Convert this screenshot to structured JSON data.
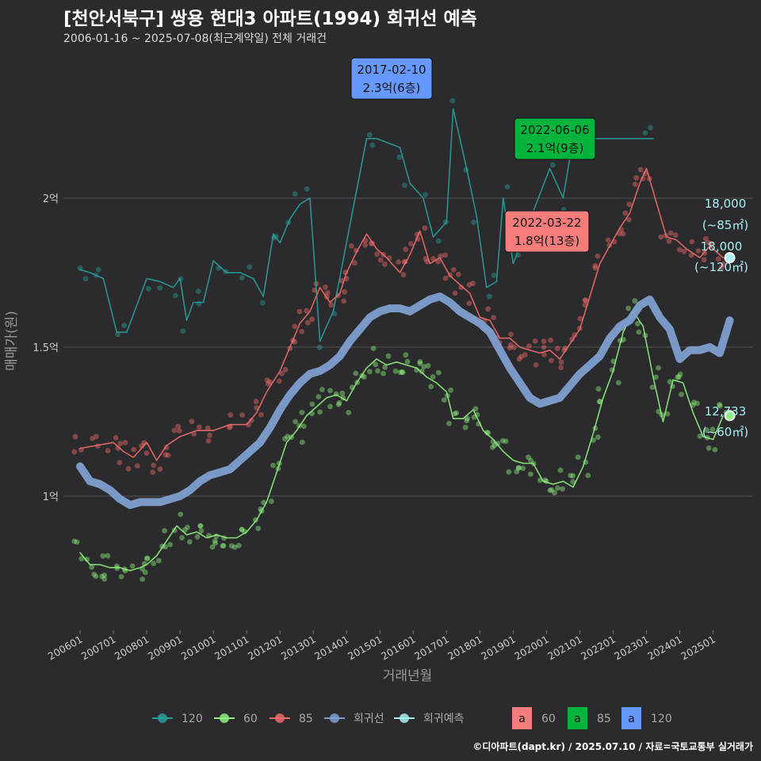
{
  "header": {
    "title": "[천안서북구] 쌍용 현대3 아파트(1994) 회귀선 예측",
    "subtitle": "2006-01-16 ~ 2025-07-08(최근계약일) 전체 거래건"
  },
  "credit": "©디아파트(dapt.kr) / 2025.07.10 / 자료=국토교통부 실거래가",
  "colors": {
    "bg": "#2b2b2d",
    "s120": "#2a9d9a",
    "s60": "#8ef07e",
    "s85": "#f06b6b",
    "reg": "#7f9fcf",
    "pred": "#a8f0f0",
    "box60": "#f47c7c",
    "box85": "#00b43c",
    "box120": "#6699ff"
  },
  "chart_data": {
    "type": "line",
    "title": "[천안서북구] 쌍용 현대3 아파트(1994) 회귀선 예측",
    "xlabel": "거래년월",
    "ylabel": "매매가(원)",
    "xlim": [
      2005.5,
      2026.2
    ],
    "ylim": [
      0.55,
      2.5
    ],
    "y_ticks": [
      {
        "v": 1.0,
        "label": "1억"
      },
      {
        "v": 1.5,
        "label": "1.5억"
      },
      {
        "v": 2.0,
        "label": "2억"
      }
    ],
    "x_ticks": [
      "200601",
      "200701",
      "200801",
      "200901",
      "201001",
      "201101",
      "201201",
      "201301",
      "201401",
      "201501",
      "201601",
      "201701",
      "201801",
      "201901",
      "202001",
      "202101",
      "202201",
      "202301",
      "202401",
      "202501"
    ],
    "series": [
      {
        "name": "120",
        "key": "s120",
        "values": [
          [
            2006.0,
            1.76
          ],
          [
            2006.3,
            1.75
          ],
          [
            2006.5,
            1.74
          ],
          [
            2006.7,
            1.73
          ],
          [
            2007.1,
            1.55
          ],
          [
            2007.4,
            1.55
          ],
          [
            2008.0,
            1.73
          ],
          [
            2008.4,
            1.72
          ],
          [
            2008.8,
            1.7
          ],
          [
            2009.0,
            1.73
          ],
          [
            2009.2,
            1.59
          ],
          [
            2009.4,
            1.65
          ],
          [
            2009.7,
            1.65
          ],
          [
            2010.0,
            1.79
          ],
          [
            2010.4,
            1.75
          ],
          [
            2010.8,
            1.75
          ],
          [
            2011.2,
            1.73
          ],
          [
            2011.5,
            1.67
          ],
          [
            2011.8,
            1.88
          ],
          [
            2012.0,
            1.85
          ],
          [
            2012.3,
            1.93
          ],
          [
            2012.6,
            1.98
          ],
          [
            2012.9,
            2.0
          ],
          [
            2013.2,
            1.52
          ],
          [
            2013.6,
            1.62
          ],
          [
            2014.6,
            2.2
          ],
          [
            2014.9,
            2.2
          ],
          [
            2015.6,
            2.17
          ],
          [
            2015.9,
            2.05
          ],
          [
            2016.3,
            2.0
          ],
          [
            2016.6,
            1.87
          ],
          [
            2017.0,
            1.92
          ],
          [
            2017.2,
            2.3
          ],
          [
            2017.6,
            2.1
          ],
          [
            2017.9,
            1.94
          ],
          [
            2018.2,
            1.7
          ],
          [
            2018.5,
            1.72
          ],
          [
            2018.7,
            2.0
          ],
          [
            2019.0,
            1.78
          ],
          [
            2020.1,
            2.1
          ],
          [
            2020.5,
            2.0
          ],
          [
            2020.8,
            2.2
          ],
          [
            2021.3,
            2.2
          ],
          [
            2022.9,
            2.2
          ],
          [
            2023.2,
            2.2
          ]
        ]
      },
      {
        "name": "85",
        "key": "s85",
        "values": [
          [
            2006.0,
            1.16
          ],
          [
            2006.5,
            1.17
          ],
          [
            2007.0,
            1.18
          ],
          [
            2007.3,
            1.15
          ],
          [
            2007.6,
            1.13
          ],
          [
            2008.0,
            1.18
          ],
          [
            2008.3,
            1.12
          ],
          [
            2008.6,
            1.17
          ],
          [
            2009.0,
            1.2
          ],
          [
            2009.5,
            1.22
          ],
          [
            2010.0,
            1.22
          ],
          [
            2010.5,
            1.24
          ],
          [
            2011.0,
            1.24
          ],
          [
            2011.3,
            1.28
          ],
          [
            2011.6,
            1.35
          ],
          [
            2012.0,
            1.42
          ],
          [
            2012.3,
            1.5
          ],
          [
            2012.6,
            1.58
          ],
          [
            2012.9,
            1.62
          ],
          [
            2013.2,
            1.7
          ],
          [
            2013.5,
            1.65
          ],
          [
            2013.8,
            1.68
          ],
          [
            2014.0,
            1.75
          ],
          [
            2014.3,
            1.82
          ],
          [
            2014.6,
            1.88
          ],
          [
            2014.9,
            1.83
          ],
          [
            2015.2,
            1.8
          ],
          [
            2015.6,
            1.75
          ],
          [
            2015.9,
            1.81
          ],
          [
            2016.2,
            1.89
          ],
          [
            2016.5,
            1.78
          ],
          [
            2016.8,
            1.8
          ],
          [
            2017.1,
            1.74
          ],
          [
            2017.4,
            1.71
          ],
          [
            2017.7,
            1.68
          ],
          [
            2018.0,
            1.6
          ],
          [
            2018.3,
            1.59
          ],
          [
            2018.6,
            1.53
          ],
          [
            2018.9,
            1.53
          ],
          [
            2019.2,
            1.5
          ],
          [
            2019.5,
            1.49
          ],
          [
            2019.8,
            1.48
          ],
          [
            2020.1,
            1.49
          ],
          [
            2020.4,
            1.46
          ],
          [
            2020.7,
            1.51
          ],
          [
            2021.0,
            1.56
          ],
          [
            2021.3,
            1.67
          ],
          [
            2021.6,
            1.78
          ],
          [
            2021.9,
            1.84
          ],
          [
            2022.2,
            1.9
          ],
          [
            2022.5,
            1.95
          ],
          [
            2022.8,
            2.05
          ],
          [
            2023.0,
            2.1
          ],
          [
            2023.6,
            1.87
          ],
          [
            2023.9,
            1.86
          ],
          [
            2024.2,
            1.83
          ],
          [
            2024.6,
            1.8
          ],
          [
            2024.9,
            1.84
          ],
          [
            2025.3,
            1.8
          ]
        ]
      },
      {
        "name": "60",
        "key": "s60",
        "values": [
          [
            2006.0,
            0.81
          ],
          [
            2006.3,
            0.77
          ],
          [
            2006.6,
            0.77
          ],
          [
            2006.9,
            0.76
          ],
          [
            2007.2,
            0.76
          ],
          [
            2007.5,
            0.75
          ],
          [
            2007.8,
            0.76
          ],
          [
            2008.0,
            0.77
          ],
          [
            2008.3,
            0.8
          ],
          [
            2008.6,
            0.85
          ],
          [
            2008.9,
            0.9
          ],
          [
            2009.2,
            0.87
          ],
          [
            2009.5,
            0.88
          ],
          [
            2009.8,
            0.86
          ],
          [
            2010.1,
            0.87
          ],
          [
            2010.4,
            0.86
          ],
          [
            2010.7,
            0.86
          ],
          [
            2011.0,
            0.88
          ],
          [
            2011.3,
            0.92
          ],
          [
            2011.6,
            0.98
          ],
          [
            2011.9,
            1.08
          ],
          [
            2012.2,
            1.18
          ],
          [
            2012.5,
            1.22
          ],
          [
            2012.8,
            1.27
          ],
          [
            2013.1,
            1.3
          ],
          [
            2013.4,
            1.33
          ],
          [
            2013.7,
            1.34
          ],
          [
            2014.0,
            1.32
          ],
          [
            2014.3,
            1.38
          ],
          [
            2014.6,
            1.43
          ],
          [
            2014.9,
            1.46
          ],
          [
            2015.2,
            1.44
          ],
          [
            2015.5,
            1.45
          ],
          [
            2015.8,
            1.44
          ],
          [
            2016.1,
            1.43
          ],
          [
            2016.4,
            1.4
          ],
          [
            2016.7,
            1.38
          ],
          [
            2017.0,
            1.35
          ],
          [
            2017.2,
            1.26
          ],
          [
            2017.5,
            1.26
          ],
          [
            2017.8,
            1.29
          ],
          [
            2018.1,
            1.22
          ],
          [
            2018.4,
            1.19
          ],
          [
            2018.7,
            1.15
          ],
          [
            2019.0,
            1.12
          ],
          [
            2019.3,
            1.11
          ],
          [
            2019.6,
            1.11
          ],
          [
            2019.9,
            1.05
          ],
          [
            2020.2,
            1.04
          ],
          [
            2020.5,
            1.05
          ],
          [
            2020.8,
            1.03
          ],
          [
            2021.1,
            1.1
          ],
          [
            2021.4,
            1.21
          ],
          [
            2021.7,
            1.33
          ],
          [
            2022.0,
            1.42
          ],
          [
            2022.3,
            1.55
          ],
          [
            2022.6,
            1.62
          ],
          [
            2022.9,
            1.57
          ],
          [
            2023.2,
            1.4
          ],
          [
            2023.5,
            1.25
          ],
          [
            2023.8,
            1.39
          ],
          [
            2024.1,
            1.38
          ],
          [
            2024.4,
            1.28
          ],
          [
            2024.7,
            1.2
          ],
          [
            2025.0,
            1.19
          ],
          [
            2025.3,
            1.27
          ]
        ]
      },
      {
        "name": "회귀선",
        "key": "reg",
        "values": [
          [
            2006.0,
            1.1
          ],
          [
            2006.3,
            1.05
          ],
          [
            2006.6,
            1.04
          ],
          [
            2006.9,
            1.02
          ],
          [
            2007.2,
            0.99
          ],
          [
            2007.5,
            0.97
          ],
          [
            2007.8,
            0.98
          ],
          [
            2008.1,
            0.98
          ],
          [
            2008.4,
            0.98
          ],
          [
            2008.7,
            0.99
          ],
          [
            2009.0,
            1.0
          ],
          [
            2009.3,
            1.02
          ],
          [
            2009.6,
            1.05
          ],
          [
            2009.9,
            1.07
          ],
          [
            2010.2,
            1.08
          ],
          [
            2010.5,
            1.09
          ],
          [
            2010.8,
            1.12
          ],
          [
            2011.1,
            1.15
          ],
          [
            2011.4,
            1.18
          ],
          [
            2011.7,
            1.23
          ],
          [
            2012.0,
            1.29
          ],
          [
            2012.3,
            1.34
          ],
          [
            2012.6,
            1.38
          ],
          [
            2012.9,
            1.41
          ],
          [
            2013.2,
            1.42
          ],
          [
            2013.5,
            1.44
          ],
          [
            2013.8,
            1.47
          ],
          [
            2014.1,
            1.52
          ],
          [
            2014.4,
            1.56
          ],
          [
            2014.7,
            1.6
          ],
          [
            2015.0,
            1.62
          ],
          [
            2015.3,
            1.63
          ],
          [
            2015.6,
            1.63
          ],
          [
            2015.9,
            1.62
          ],
          [
            2016.2,
            1.64
          ],
          [
            2016.5,
            1.66
          ],
          [
            2016.8,
            1.67
          ],
          [
            2017.1,
            1.65
          ],
          [
            2017.4,
            1.62
          ],
          [
            2017.7,
            1.6
          ],
          [
            2018.0,
            1.58
          ],
          [
            2018.3,
            1.55
          ],
          [
            2018.6,
            1.49
          ],
          [
            2018.9,
            1.43
          ],
          [
            2019.2,
            1.38
          ],
          [
            2019.5,
            1.33
          ],
          [
            2019.8,
            1.31
          ],
          [
            2020.1,
            1.32
          ],
          [
            2020.4,
            1.33
          ],
          [
            2020.7,
            1.37
          ],
          [
            2021.0,
            1.41
          ],
          [
            2021.3,
            1.44
          ],
          [
            2021.6,
            1.47
          ],
          [
            2021.9,
            1.53
          ],
          [
            2022.2,
            1.57
          ],
          [
            2022.5,
            1.59
          ],
          [
            2022.8,
            1.64
          ],
          [
            2023.1,
            1.66
          ],
          [
            2023.4,
            1.6
          ],
          [
            2023.7,
            1.56
          ],
          [
            2024.0,
            1.46
          ],
          [
            2024.3,
            1.49
          ],
          [
            2024.6,
            1.49
          ],
          [
            2024.9,
            1.5
          ],
          [
            2025.2,
            1.48
          ],
          [
            2025.5,
            1.59
          ]
        ]
      }
    ],
    "predictions": [
      {
        "size": "120",
        "x": 2025.5,
        "y": 1.8,
        "label": "18,000",
        "area": "(~120㎡)"
      },
      {
        "size": "85",
        "x": 2025.5,
        "y": 1.8,
        "label": "18,000",
        "area": "(~85㎡)"
      },
      {
        "size": "60",
        "x": 2025.5,
        "y": 1.27,
        "label": "12,733",
        "area": "(~60㎡)"
      }
    ],
    "annotations": [
      {
        "type": "120",
        "date": "2017-02-10",
        "value": "2.3억(6층)",
        "x": 2017.1,
        "y": 2.3
      },
      {
        "type": "85",
        "date": "2022-06-06",
        "value": "2.1억(9층)",
        "x": 2022.4,
        "y": 2.1
      },
      {
        "type": "60",
        "date": "2022-03-22",
        "value": "1.8억(13층)",
        "x": 2022.2,
        "y": 1.8
      }
    ],
    "legend": {
      "position": "bottom",
      "lines": [
        {
          "label": "120",
          "key": "s120"
        },
        {
          "label": "60",
          "key": "s60"
        },
        {
          "label": "85",
          "key": "s85"
        },
        {
          "label": "회귀선",
          "key": "reg"
        },
        {
          "label": "회귀예측",
          "key": "pred"
        }
      ],
      "boxes": [
        {
          "label": "60",
          "key": "box60"
        },
        {
          "label": "85",
          "key": "box85"
        },
        {
          "label": "120",
          "key": "box120"
        }
      ]
    }
  }
}
